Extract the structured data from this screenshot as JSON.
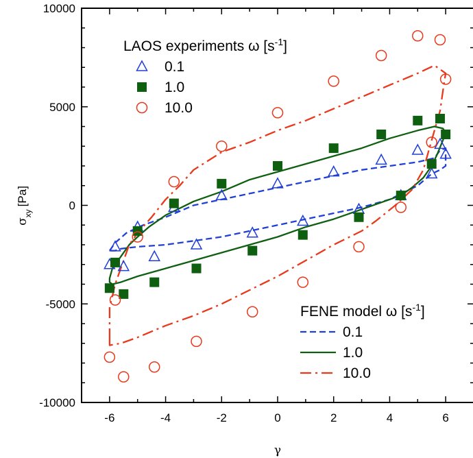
{
  "chart_data": {
    "type": "line",
    "xlabel": "γ",
    "ylabel": "σ",
    "ylabel_sub": "xy",
    "ylabel_unit": "[Pa]",
    "xlim": [
      -7,
      7
    ],
    "ylim": [
      -10000,
      10000
    ],
    "x_ticks": [
      -6,
      -4,
      -2,
      0,
      2,
      4,
      6
    ],
    "x_tick_labels": [
      "-6",
      "-4",
      "-2",
      "0",
      "2",
      "4",
      "6"
    ],
    "y_ticks": [
      -10000,
      -5000,
      0,
      5000,
      10000
    ],
    "y_tick_labels": [
      "-10000",
      "-5000",
      "0",
      "5000",
      "10000"
    ],
    "grid": false,
    "legends": [
      {
        "placement": "top-left",
        "title": "LAOS experiments ω [s",
        "title_sup": "-1",
        "title_end": "]",
        "entries": [
          "0.1",
          "1.0",
          "10.0"
        ]
      },
      {
        "placement": "bottom-right",
        "title": "FENE model ω [s",
        "title_sup": "-1",
        "title_end": "]",
        "entries": [
          "0.1",
          "1.0",
          "10.0"
        ]
      }
    ],
    "series": [
      {
        "name": "0.1",
        "kind": "scatter",
        "marker": "triangle-open",
        "color": "#1f3fd6",
        "points": [
          [
            -6.0,
            -3000
          ],
          [
            -5.8,
            -2100
          ],
          [
            -5.5,
            -3100
          ],
          [
            -5.0,
            -1100
          ],
          [
            -4.4,
            -2600
          ],
          [
            -3.7,
            -100
          ],
          [
            -2.9,
            -2000
          ],
          [
            -2.0,
            500
          ],
          [
            -0.9,
            -1400
          ],
          [
            0.0,
            1100
          ],
          [
            0.9,
            -800
          ],
          [
            2.0,
            1700
          ],
          [
            2.9,
            -200
          ],
          [
            3.7,
            2300
          ],
          [
            4.4,
            500
          ],
          [
            5.0,
            2800
          ],
          [
            5.5,
            1600
          ],
          [
            5.8,
            3100
          ],
          [
            6.0,
            2600
          ]
        ]
      },
      {
        "name": "1.0",
        "kind": "scatter",
        "marker": "square-filled",
        "color": "#0f5f10",
        "points": [
          [
            -6.0,
            -4200
          ],
          [
            -5.8,
            -2900
          ],
          [
            -5.5,
            -4500
          ],
          [
            -5.0,
            -1300
          ],
          [
            -4.4,
            -3900
          ],
          [
            -3.7,
            100
          ],
          [
            -2.9,
            -3200
          ],
          [
            -2.0,
            1100
          ],
          [
            -0.9,
            -2300
          ],
          [
            0.0,
            2000
          ],
          [
            0.9,
            -1500
          ],
          [
            2.0,
            2900
          ],
          [
            2.9,
            -600
          ],
          [
            3.7,
            3600
          ],
          [
            4.4,
            500
          ],
          [
            5.0,
            4300
          ],
          [
            5.5,
            2100
          ],
          [
            5.8,
            4400
          ],
          [
            6.0,
            3600
          ]
        ]
      },
      {
        "name": "10.0",
        "kind": "scatter",
        "marker": "circle-open",
        "color": "#e8391c",
        "points": [
          [
            -6.0,
            -7700
          ],
          [
            -5.8,
            -4800
          ],
          [
            -5.5,
            -8700
          ],
          [
            -5.0,
            -1600
          ],
          [
            -4.4,
            -8200
          ],
          [
            -3.7,
            1200
          ],
          [
            -2.9,
            -6900
          ],
          [
            -2.0,
            3000
          ],
          [
            -0.9,
            -5400
          ],
          [
            0.0,
            4700
          ],
          [
            0.9,
            -3900
          ],
          [
            2.0,
            6300
          ],
          [
            2.9,
            -2100
          ],
          [
            3.7,
            7600
          ],
          [
            4.4,
            -100
          ],
          [
            5.0,
            8600
          ],
          [
            5.5,
            3200
          ],
          [
            5.8,
            8400
          ],
          [
            6.0,
            6400
          ]
        ]
      },
      {
        "name": "0.1",
        "kind": "line",
        "dash": "dash",
        "color": "#1f3fd6",
        "points": [
          [
            -6.0,
            -2300
          ],
          [
            -5.8,
            -1900
          ],
          [
            -5.4,
            -1400
          ],
          [
            -4.8,
            -1000
          ],
          [
            -4.0,
            -600
          ],
          [
            -3.0,
            0
          ],
          [
            -2.0,
            300
          ],
          [
            -1.0,
            600
          ],
          [
            0.0,
            900
          ],
          [
            1.0,
            1200
          ],
          [
            2.0,
            1500
          ],
          [
            3.0,
            1800
          ],
          [
            4.0,
            2000
          ],
          [
            5.0,
            2200
          ],
          [
            5.6,
            2400
          ],
          [
            5.8,
            2800
          ],
          [
            6.0,
            2900
          ],
          [
            6.0,
            2000
          ],
          [
            5.8,
            1800
          ],
          [
            5.5,
            1600
          ],
          [
            5.0,
            1000
          ],
          [
            4.0,
            300
          ],
          [
            3.0,
            -100
          ],
          [
            2.0,
            -400
          ],
          [
            1.0,
            -700
          ],
          [
            0.0,
            -1000
          ],
          [
            -1.0,
            -1300
          ],
          [
            -2.0,
            -1600
          ],
          [
            -3.0,
            -1800
          ],
          [
            -4.0,
            -2000
          ],
          [
            -5.0,
            -2100
          ],
          [
            -5.6,
            -2200
          ],
          [
            -5.8,
            -2300
          ],
          [
            -6.0,
            -2300
          ]
        ]
      },
      {
        "name": "1.0",
        "kind": "line",
        "dash": "solid",
        "color": "#0f5f10",
        "points": [
          [
            -6.0,
            -3700
          ],
          [
            -5.9,
            -3200
          ],
          [
            -5.6,
            -2600
          ],
          [
            -5.3,
            -2000
          ],
          [
            -5.0,
            -1600
          ],
          [
            -4.6,
            -1100
          ],
          [
            -4.0,
            -500
          ],
          [
            -3.0,
            200
          ],
          [
            -2.0,
            700
          ],
          [
            -1.0,
            1300
          ],
          [
            0.0,
            1700
          ],
          [
            1.0,
            2100
          ],
          [
            2.0,
            2500
          ],
          [
            3.0,
            2900
          ],
          [
            4.0,
            3400
          ],
          [
            5.0,
            3800
          ],
          [
            5.6,
            4000
          ],
          [
            5.9,
            3900
          ],
          [
            6.0,
            3700
          ],
          [
            5.9,
            3300
          ],
          [
            5.7,
            2600
          ],
          [
            5.5,
            2000
          ],
          [
            5.2,
            1400
          ],
          [
            4.8,
            900
          ],
          [
            4.4,
            500
          ],
          [
            4.0,
            300
          ],
          [
            3.0,
            -200
          ],
          [
            2.0,
            -700
          ],
          [
            1.0,
            -1100
          ],
          [
            0.0,
            -1600
          ],
          [
            -1.0,
            -2000
          ],
          [
            -2.0,
            -2400
          ],
          [
            -3.0,
            -2800
          ],
          [
            -4.0,
            -3200
          ],
          [
            -5.0,
            -3600
          ],
          [
            -5.6,
            -3900
          ],
          [
            -5.9,
            -4000
          ],
          [
            -6.0,
            -3900
          ]
        ]
      },
      {
        "name": "10.0",
        "kind": "line",
        "dash": "dashdot",
        "color": "#e8391c",
        "points": [
          [
            -6.0,
            -6800
          ],
          [
            -6.0,
            -5200
          ],
          [
            -5.8,
            -4000
          ],
          [
            -5.5,
            -2800
          ],
          [
            -5.3,
            -2000
          ],
          [
            -5.0,
            -1400
          ],
          [
            -4.5,
            -600
          ],
          [
            -4.0,
            300
          ],
          [
            -3.5,
            1000
          ],
          [
            -3.0,
            1800
          ],
          [
            -2.0,
            2700
          ],
          [
            -1.0,
            3200
          ],
          [
            0.0,
            3800
          ],
          [
            1.0,
            4300
          ],
          [
            2.0,
            4900
          ],
          [
            3.0,
            5500
          ],
          [
            4.0,
            6100
          ],
          [
            5.0,
            6700
          ],
          [
            5.6,
            7100
          ],
          [
            5.8,
            6900
          ],
          [
            6.0,
            6700
          ],
          [
            5.9,
            5800
          ],
          [
            5.8,
            4800
          ],
          [
            5.5,
            3300
          ],
          [
            5.2,
            1800
          ],
          [
            4.8,
            800
          ],
          [
            4.2,
            0
          ],
          [
            3.5,
            -800
          ],
          [
            3.0,
            -1300
          ],
          [
            2.0,
            -2000
          ],
          [
            1.0,
            -2800
          ],
          [
            0.0,
            -3600
          ],
          [
            -1.0,
            -4300
          ],
          [
            -2.0,
            -5000
          ],
          [
            -3.0,
            -5600
          ],
          [
            -4.0,
            -6100
          ],
          [
            -5.0,
            -6700
          ],
          [
            -5.6,
            -7000
          ],
          [
            -6.0,
            -7100
          ]
        ]
      }
    ]
  }
}
